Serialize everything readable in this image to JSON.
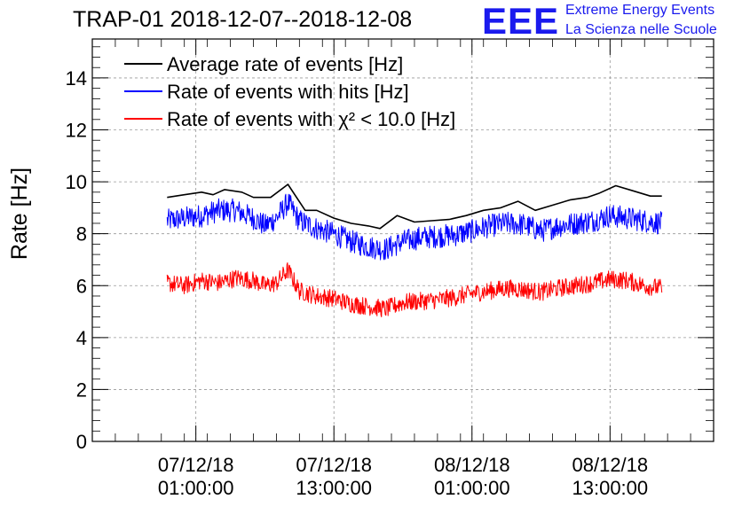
{
  "header": {
    "title": "TRAP-01 2018-12-07--2018-12-08",
    "logo_text": "EEE",
    "logo_line1": "Extreme Energy Events",
    "logo_line2": "La Scienza nelle Scuole"
  },
  "chart_data": {
    "type": "line",
    "title": "TRAP-01 2018-12-07--2018-12-08",
    "ylabel": "Rate [Hz]",
    "xlabel": "",
    "xlim": [
      "2018-12-06 16:00:00",
      "2018-12-08 22:00:00"
    ],
    "ylim": [
      0,
      15.5
    ],
    "y_ticks": [
      "0",
      "2",
      "4",
      "6",
      "8",
      "10",
      "12",
      "14"
    ],
    "x_ticks": [
      {
        "t": "2018-12-07 01:00:00",
        "line1": "07/12/18",
        "line2": "01:00:00"
      },
      {
        "t": "2018-12-07 13:00:00",
        "line1": "07/12/18",
        "line2": "13:00:00"
      },
      {
        "t": "2018-12-08 01:00:00",
        "line1": "08/12/18",
        "line2": "01:00:00"
      },
      {
        "t": "2018-12-08 13:00:00",
        "line1": "08/12/18",
        "line2": "13:00:00"
      }
    ],
    "grid": true,
    "legend_position": "top-left",
    "series": [
      {
        "name": "Average rate of events [Hz]",
        "color": "#000000",
        "style": "smooth",
        "x": [
          "2018-12-06 22:30",
          "2018-12-07 00:00",
          "2018-12-07 01:30",
          "2018-12-07 02:30",
          "2018-12-07 03:30",
          "2018-12-07 05:00",
          "2018-12-07 06:00",
          "2018-12-07 07:30",
          "2018-12-07 09:00",
          "2018-12-07 10:30",
          "2018-12-07 11:30",
          "2018-12-07 13:00",
          "2018-12-07 14:30",
          "2018-12-07 16:00",
          "2018-12-07 17:00",
          "2018-12-07 18:30",
          "2018-12-07 20:00",
          "2018-12-07 21:30",
          "2018-12-07 23:00",
          "2018-12-08 00:30",
          "2018-12-08 02:00",
          "2018-12-08 03:30",
          "2018-12-08 05:00",
          "2018-12-08 06:30",
          "2018-12-08 08:00",
          "2018-12-08 09:30",
          "2018-12-08 11:00",
          "2018-12-08 12:00",
          "2018-12-08 13:30",
          "2018-12-08 15:00",
          "2018-12-08 16:30",
          "2018-12-08 17:30"
        ],
        "values": [
          9.4,
          9.5,
          9.6,
          9.5,
          9.7,
          9.6,
          9.4,
          9.4,
          9.9,
          8.9,
          8.9,
          8.6,
          8.4,
          8.3,
          8.2,
          8.7,
          8.45,
          8.5,
          8.55,
          8.7,
          8.9,
          9.0,
          9.25,
          8.9,
          9.1,
          9.3,
          9.4,
          9.55,
          9.85,
          9.65,
          9.45,
          9.45
        ]
      },
      {
        "name": "Rate of events with hits [Hz]",
        "color": "#0000ff",
        "style": "noisy",
        "noise_amplitude": 0.45,
        "x": [
          "2018-12-06 22:30",
          "2018-12-07 00:00",
          "2018-12-07 01:30",
          "2018-12-07 03:00",
          "2018-12-07 04:30",
          "2018-12-07 06:00",
          "2018-12-07 07:00",
          "2018-12-07 08:00",
          "2018-12-07 09:00",
          "2018-12-07 10:00",
          "2018-12-07 11:30",
          "2018-12-07 13:00",
          "2018-12-07 14:30",
          "2018-12-07 16:00",
          "2018-12-07 17:30",
          "2018-12-07 19:00",
          "2018-12-07 20:30",
          "2018-12-07 22:00",
          "2018-12-07 23:30",
          "2018-12-08 01:00",
          "2018-12-08 02:30",
          "2018-12-08 04:00",
          "2018-12-08 05:30",
          "2018-12-08 07:00",
          "2018-12-08 08:30",
          "2018-12-08 10:00",
          "2018-12-08 11:30",
          "2018-12-08 13:00",
          "2018-12-08 14:30",
          "2018-12-08 16:00",
          "2018-12-08 17:30"
        ],
        "values": [
          8.5,
          8.6,
          8.7,
          8.9,
          8.9,
          8.6,
          8.3,
          8.6,
          9.2,
          8.5,
          8.2,
          8.0,
          7.7,
          7.5,
          7.4,
          7.7,
          7.85,
          7.9,
          7.95,
          8.1,
          8.3,
          8.4,
          8.35,
          8.1,
          8.3,
          8.4,
          8.5,
          8.7,
          8.6,
          8.5,
          8.4
        ]
      },
      {
        "name": "Rate of events with χ² < 10.0 [Hz]",
        "color": "#ff0000",
        "style": "noisy",
        "noise_amplitude": 0.35,
        "x": [
          "2018-12-06 22:30",
          "2018-12-07 00:00",
          "2018-12-07 01:30",
          "2018-12-07 03:00",
          "2018-12-07 04:30",
          "2018-12-07 06:00",
          "2018-12-07 07:00",
          "2018-12-07 08:00",
          "2018-12-07 09:00",
          "2018-12-07 10:00",
          "2018-12-07 11:30",
          "2018-12-07 13:00",
          "2018-12-07 14:30",
          "2018-12-07 16:00",
          "2018-12-07 17:30",
          "2018-12-07 19:00",
          "2018-12-07 20:30",
          "2018-12-07 22:00",
          "2018-12-07 23:30",
          "2018-12-08 01:00",
          "2018-12-08 02:30",
          "2018-12-08 04:00",
          "2018-12-08 05:30",
          "2018-12-08 07:00",
          "2018-12-08 08:30",
          "2018-12-08 10:00",
          "2018-12-08 11:30",
          "2018-12-08 13:00",
          "2018-12-08 14:30",
          "2018-12-08 16:00",
          "2018-12-08 17:30"
        ],
        "values": [
          6.1,
          6.0,
          6.2,
          6.1,
          6.3,
          6.2,
          6.0,
          6.1,
          6.6,
          5.8,
          5.6,
          5.5,
          5.3,
          5.2,
          5.1,
          5.35,
          5.4,
          5.45,
          5.55,
          5.7,
          5.8,
          5.9,
          5.85,
          5.75,
          5.9,
          6.0,
          6.1,
          6.25,
          6.2,
          6.0,
          5.9
        ]
      }
    ]
  }
}
